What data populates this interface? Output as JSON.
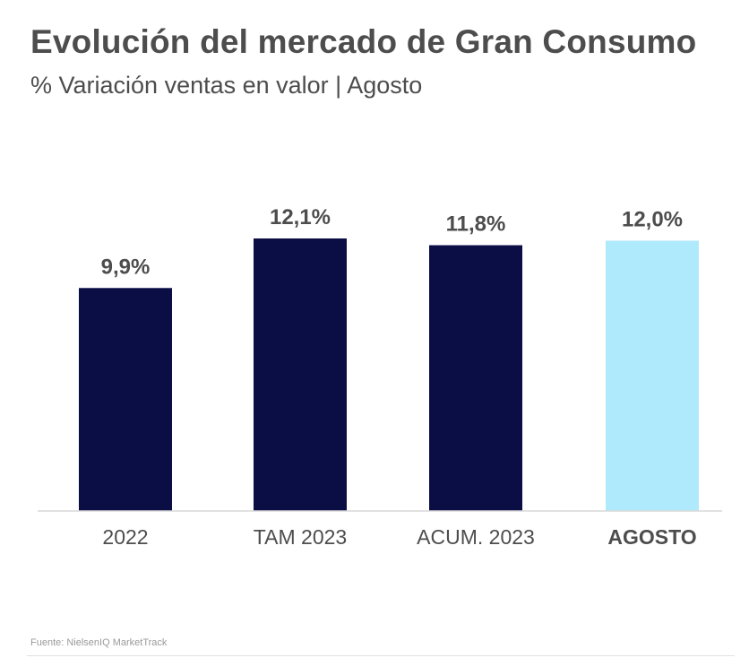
{
  "title": "Evolución del mercado de Gran Consumo",
  "subtitle": "% Variación ventas en valor | Agosto",
  "source": "Fuente: NielsenIQ MarketTrack",
  "colors": {
    "dark_bar": "#0a0e45",
    "highlight_bar": "#aeeafc",
    "text": "#4d4d4d",
    "axis": "#d9d9d9"
  },
  "chart_data": {
    "type": "bar",
    "categories": [
      "2022",
      "TAM 2023",
      "ACUM. 2023",
      "AGOSTO"
    ],
    "values": [
      9.9,
      12.1,
      11.8,
      12.0
    ],
    "data_labels": [
      "9,9%",
      "12,1%",
      "11,8%",
      "12,0%"
    ],
    "highlight_index": 3,
    "ylim": [
      0,
      12.1
    ],
    "grid": false,
    "xlabel": "",
    "ylabel": ""
  }
}
